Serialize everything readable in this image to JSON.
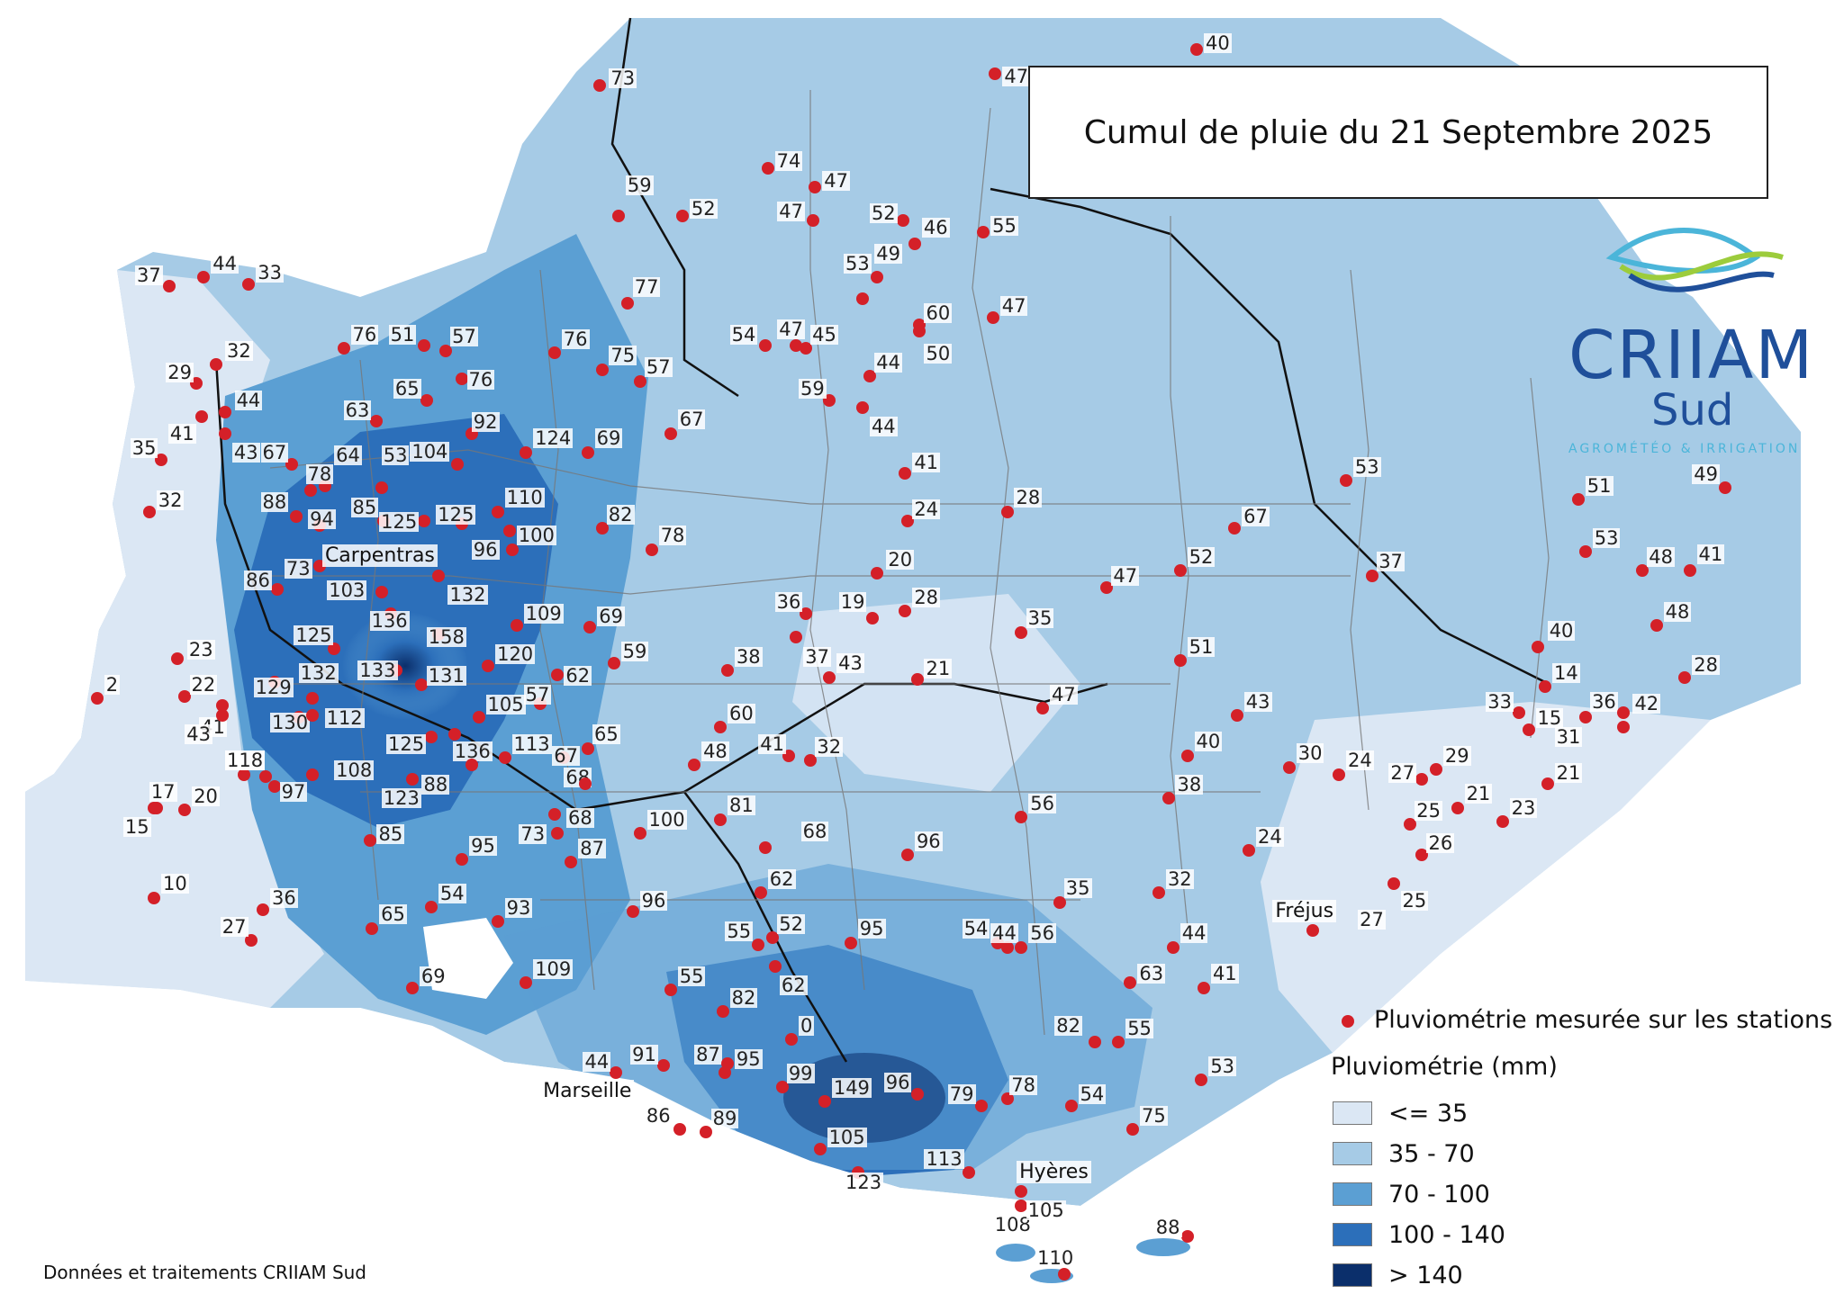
{
  "title": "Cumul de pluie du 21 Septembre 2025",
  "logo": {
    "name": "CRIIAM",
    "sub": "Sud",
    "tagline": "AGROMÉTÉO & IRRIGATION"
  },
  "credit": "Données et traitements CRIIAM Sud",
  "legend": {
    "stations_label": "Pluviométrie mesurée sur les stations",
    "title": "Pluviométrie (mm)",
    "classes": [
      {
        "label": "<= 35",
        "color": "#dbe7f4"
      },
      {
        "label": "35 - 70",
        "color": "#a6cbe6"
      },
      {
        "label": "70 - 100",
        "color": "#5b9fd3"
      },
      {
        "label": "100 - 140",
        "color": "#2c6fba"
      },
      {
        "label": "> 140",
        "color": "#0b2f6b"
      }
    ]
  },
  "colors": {
    "station": "#d42028",
    "border": "#555555"
  },
  "cities": [
    "Carpentras",
    "Fréjus",
    "Marseille",
    "Hyères"
  ],
  "stations": [
    "73",
    "59",
    "52",
    "74",
    "47",
    "47",
    "52",
    "46",
    "55",
    "47",
    "40",
    "53",
    "49",
    "77",
    "60",
    "47",
    "50",
    "37",
    "44",
    "33",
    "76",
    "51",
    "57",
    "32",
    "29",
    "44",
    "76",
    "75",
    "57",
    "54",
    "47",
    "45",
    "44",
    "59",
    "44",
    "65",
    "63",
    "76",
    "92",
    "124",
    "69",
    "67",
    "35",
    "41",
    "43",
    "67",
    "64",
    "53",
    "104",
    "41",
    "78",
    "32",
    "88",
    "94",
    "85",
    "125",
    "125",
    "110",
    "100",
    "82",
    "96",
    "78",
    "28",
    "24",
    "67",
    "53",
    "51",
    "49",
    "86",
    "73",
    "103",
    "132",
    "109",
    "20",
    "47",
    "52",
    "37",
    "53",
    "48",
    "41",
    "136",
    "158",
    "69",
    "59",
    "36",
    "19",
    "28",
    "35",
    "23",
    "125",
    "120",
    "38",
    "37",
    "43",
    "21",
    "51",
    "40",
    "48",
    "2",
    "22",
    "129",
    "132",
    "133",
    "131",
    "62",
    "14",
    "28",
    "41",
    "43",
    "130",
    "112",
    "105",
    "57",
    "60",
    "47",
    "43",
    "33",
    "15",
    "36",
    "42",
    "21",
    "118",
    "125",
    "136",
    "113",
    "67",
    "65",
    "48",
    "41",
    "32",
    "40",
    "30",
    "24",
    "27",
    "29",
    "31",
    "17",
    "20",
    "118",
    "108",
    "88",
    "68",
    "38",
    "25",
    "21",
    "15",
    "97",
    "123",
    "68",
    "100",
    "81",
    "56",
    "24",
    "26",
    "23",
    "85",
    "95",
    "73",
    "87",
    "68",
    "96",
    "25",
    "10",
    "36",
    "54",
    "96",
    "62",
    "32",
    "27",
    "27",
    "65",
    "93",
    "55",
    "52",
    "95",
    "54",
    "44",
    "56",
    "35",
    "44",
    "69",
    "109",
    "55",
    "82",
    "62",
    "63",
    "41",
    "82",
    "55",
    "53",
    "0",
    "44",
    "91",
    "87",
    "95",
    "99",
    "149",
    "96",
    "79",
    "78",
    "54",
    "75",
    "86",
    "89",
    "105",
    "113",
    "123",
    "108",
    "105",
    "110",
    "88"
  ]
}
